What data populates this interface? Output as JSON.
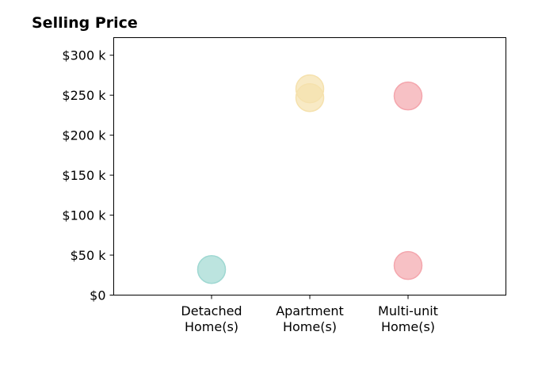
{
  "chart_data": {
    "type": "scatter",
    "title": "Selling Price",
    "xlabel": "",
    "ylabel": "",
    "categories": [
      [
        "Detached",
        "Home(s)"
      ],
      [
        "Apartment",
        "Home(s)"
      ],
      [
        "Multi-unit",
        "Home(s)"
      ]
    ],
    "y_ticks": [
      0,
      50000,
      100000,
      150000,
      200000,
      250000,
      300000
    ],
    "y_tick_labels": [
      "$0",
      "$50 k",
      "$100 k",
      "$150 k",
      "$200 k",
      "$250 k",
      "$300 k"
    ],
    "ylim": [
      0,
      322000
    ],
    "grid": false,
    "legend": "none",
    "points": [
      {
        "category": 0,
        "value": 32000,
        "color": "#9fd8d2"
      },
      {
        "category": 1,
        "value": 258000,
        "color": "#f5e1ad"
      },
      {
        "category": 1,
        "value": 247000,
        "color": "#f5e1ad"
      },
      {
        "category": 2,
        "value": 249000,
        "color": "#f4a6ad"
      },
      {
        "category": 2,
        "value": 37000,
        "color": "#f4a6ad"
      }
    ]
  }
}
